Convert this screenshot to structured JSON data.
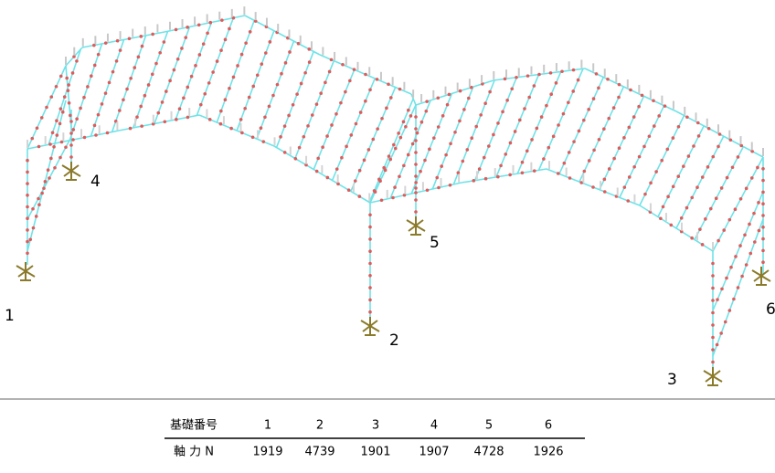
{
  "supports": [
    "1",
    "2",
    "3",
    "4",
    "5",
    "6"
  ],
  "table": {
    "header": [
      "基礎番号",
      1,
      2,
      3,
      4,
      5,
      6
    ],
    "row": [
      "軸 力 N",
      1919,
      4739,
      1901,
      1907,
      4728,
      1926
    ]
  }
}
